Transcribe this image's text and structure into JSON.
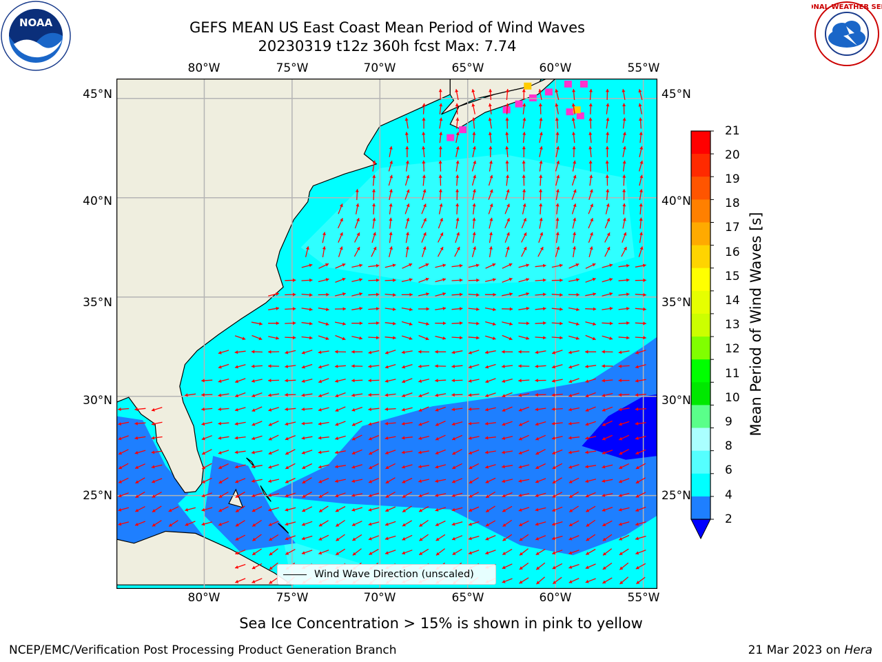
{
  "header": {
    "title_line1": "GEFS MEAN US East Coast Mean Period of Wind Waves",
    "title_line2": "20230319 t12z 360h fcst   Max: 7.74"
  },
  "logos": {
    "left": "NOAA",
    "right": "NATIONAL WEATHER SERVICE"
  },
  "map": {
    "lon_range": [
      -85,
      -54.2
    ],
    "lat_range": [
      20.3,
      46
    ],
    "lon_ticks": [
      "80°W",
      "75°W",
      "70°W",
      "65°W",
      "60°W",
      "55°W"
    ],
    "lat_ticks": [
      "45°N",
      "40°N",
      "35°N",
      "30°N",
      "25°N"
    ],
    "gridlines": true,
    "arrow_color": "#ff0000",
    "land_color": "#efeedf",
    "legend_text": "Wind Wave Direction (unscaled)"
  },
  "colorbar": {
    "label": "Mean Period of Wind Waves [s]",
    "ticks": [
      "21",
      "20",
      "19",
      "18",
      "17",
      "16",
      "15",
      "14",
      "13",
      "12",
      "11",
      "10",
      "9",
      "8",
      "6",
      "4",
      "2"
    ],
    "colors": [
      "#ff0000",
      "#ff2a00",
      "#ff5500",
      "#ff8000",
      "#ffaa00",
      "#ffd400",
      "#ffff00",
      "#e6ff00",
      "#ccff00",
      "#80ff00",
      "#00ff00",
      "#00e800",
      "#5aff8a",
      "#aaffff",
      "#55ffff",
      "#00ffff",
      "#1e7fff"
    ],
    "extend_color": "#0000ff"
  },
  "footer": {
    "note": "Sea Ice Concentration > 15% is shown in pink to yellow",
    "left": "NCEP/EMC/Verification Post Processing Product Generation Branch",
    "date": "21 Mar 2023 on ",
    "host": "Hera"
  }
}
